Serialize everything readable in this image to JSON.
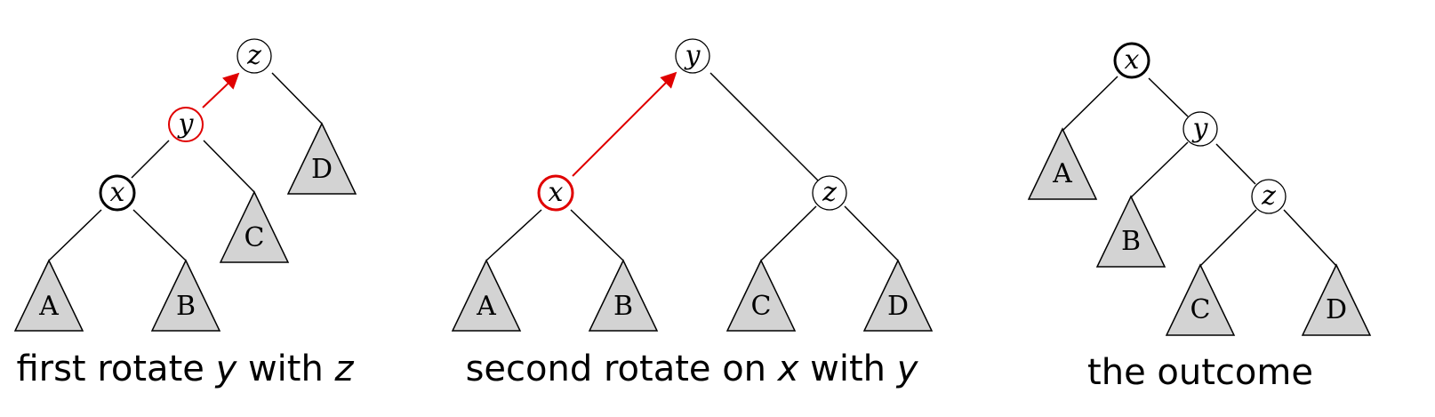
{
  "panels": [
    {
      "caption": {
        "text": "first rotate ",
        "var1": "y",
        "mid": " with ",
        "var2": "z"
      },
      "nodes": [
        {
          "id": "z",
          "label": "z",
          "style": "normal"
        },
        {
          "id": "y",
          "label": "y",
          "style": "highlight-red"
        },
        {
          "id": "x",
          "label": "x",
          "style": "bold"
        }
      ],
      "subtrees": [
        "A",
        "B",
        "C",
        "D"
      ],
      "arrow": {
        "from": "y",
        "to": "z",
        "color": "#e00000"
      }
    },
    {
      "caption": {
        "text": "second rotate on ",
        "var1": "x",
        "mid": " with ",
        "var2": "y"
      },
      "nodes": [
        {
          "id": "y",
          "label": "y",
          "style": "normal"
        },
        {
          "id": "x",
          "label": "x",
          "style": "highlight-red"
        },
        {
          "id": "z",
          "label": "z",
          "style": "normal"
        }
      ],
      "subtrees": [
        "A",
        "B",
        "C",
        "D"
      ],
      "arrow": {
        "from": "x",
        "to": "y",
        "color": "#e00000"
      }
    },
    {
      "caption": {
        "text": "the outcome"
      },
      "nodes": [
        {
          "id": "x",
          "label": "x",
          "style": "bold"
        },
        {
          "id": "y",
          "label": "y",
          "style": "normal"
        },
        {
          "id": "z",
          "label": "z",
          "style": "normal"
        }
      ],
      "subtrees": [
        "A",
        "B",
        "C",
        "D"
      ]
    }
  ],
  "colors": {
    "accent": "#e00000",
    "subtree_fill": "#d3d3d3",
    "stroke": "#000000"
  }
}
